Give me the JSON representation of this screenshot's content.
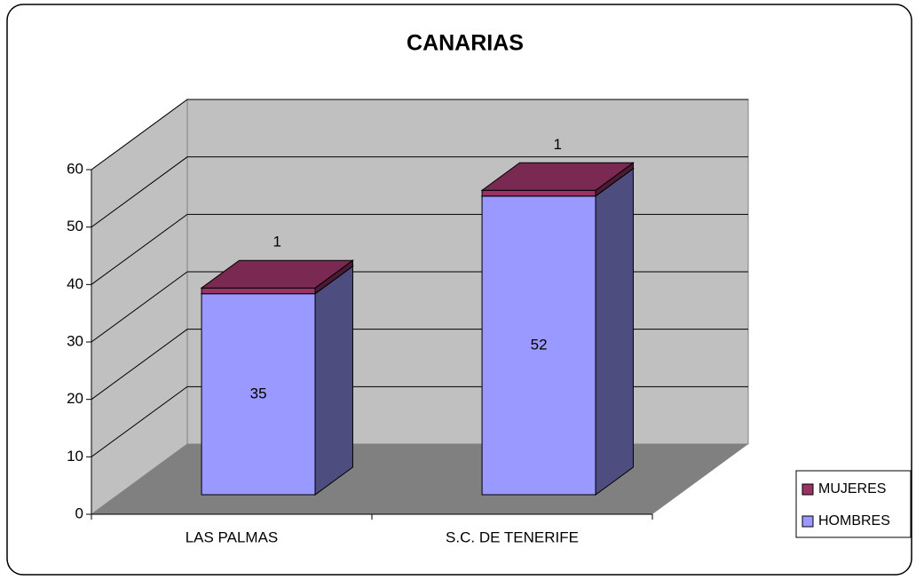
{
  "chart_data": {
    "type": "bar",
    "stacked": true,
    "title": "CANARIAS",
    "categories": [
      "LAS PALMAS",
      "S.C. DE TENERIFE"
    ],
    "series": [
      {
        "name": "HOMBRES",
        "color": "#9999ff",
        "values": [
          35,
          52
        ]
      },
      {
        "name": "MUJERES",
        "color": "#993366",
        "values": [
          1,
          1
        ]
      }
    ],
    "ylim": [
      0,
      60
    ],
    "yticks": [
      0,
      10,
      20,
      30,
      40,
      50,
      60
    ],
    "grid": true,
    "legend": "right"
  }
}
